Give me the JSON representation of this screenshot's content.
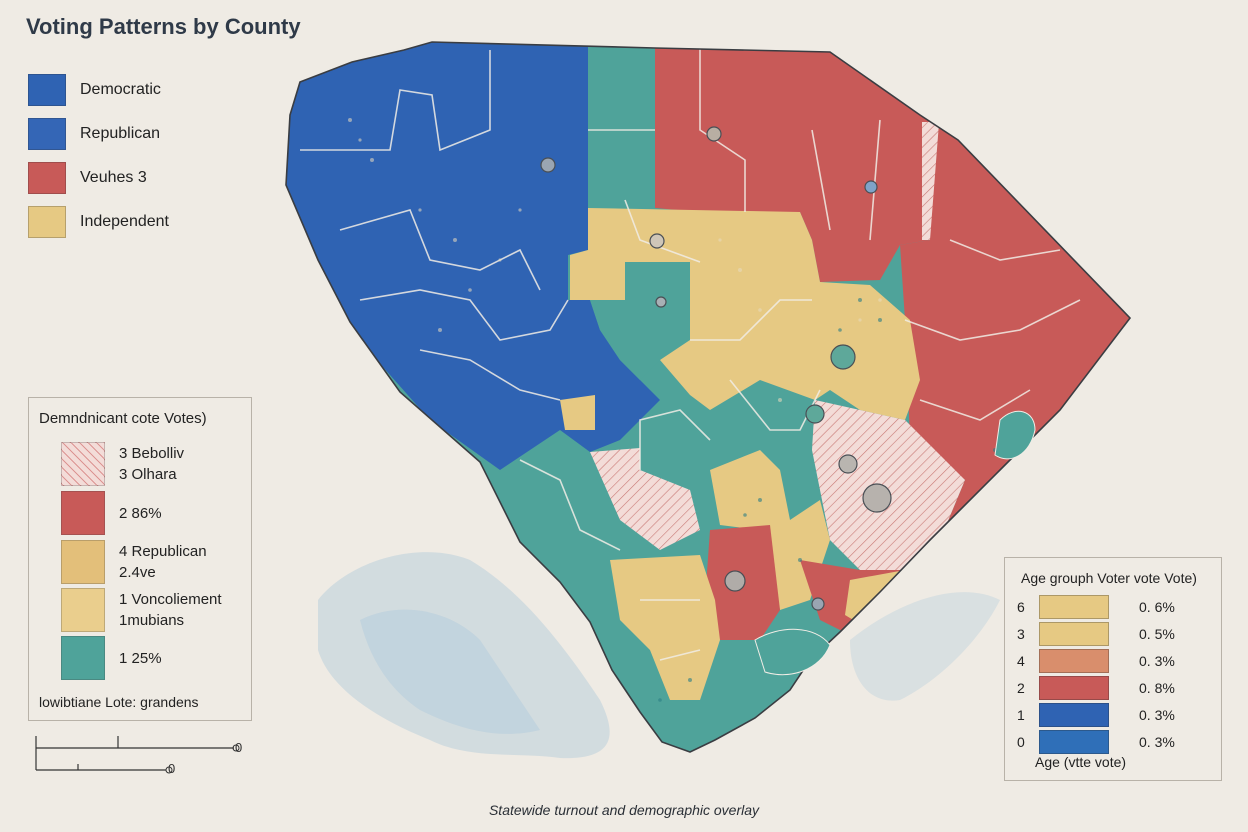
{
  "title": "Voting Patterns by County",
  "legend": {
    "items": [
      {
        "label": "Democratic",
        "color": "#2f63b3"
      },
      {
        "label": "Republican",
        "color": "#3466b6"
      },
      {
        "label": "Veuhes 3",
        "color": "#c85a58"
      },
      {
        "label": "Independent",
        "color": "#e6c983"
      }
    ]
  },
  "demographic_legend": {
    "title": "Demndnicant cote Votes)",
    "items": [
      {
        "line1": "3 Bebolliv",
        "line2": "3 Olhara",
        "color": "#f3dcd8",
        "pattern": "hatched"
      },
      {
        "line1": "2 86%",
        "line2": "",
        "color": "#c85a58"
      },
      {
        "line1": "4 Republican",
        "line2": "2.4ve",
        "color": "#e3bf7a"
      },
      {
        "line1": "1 Voncoliement",
        "line2": "1mubians",
        "color": "#eace8d"
      },
      {
        "line1": "1 25%",
        "line2": "",
        "color": "#4fa39a"
      }
    ],
    "footnote": "lowibtiane Lote: grandens"
  },
  "age_legend": {
    "title": "Age grouph Voter vote Vote)",
    "rows": [
      {
        "label": "6",
        "color": "#e6c983",
        "value": "0. 6%"
      },
      {
        "label": "3",
        "color": "#e6c983",
        "value": "0. 5%"
      },
      {
        "label": "4",
        "color": "#d98e6c",
        "value": "0. 3%"
      },
      {
        "label": "2",
        "color": "#c85a58",
        "value": "0. 8%"
      },
      {
        "label": "1",
        "color": "#2f63b3",
        "value": "0. 3%"
      },
      {
        "label": "0",
        "color": "#2f6fb8",
        "value": "0. 3%"
      }
    ],
    "footnote": "Age (vtte vote)"
  },
  "scale_bar": {
    "label_top": "0",
    "label_bottom": "0"
  },
  "caption": "Statewide turnout and demographic overlay",
  "colors": {
    "blue": "#2f63b3",
    "teal": "#4fa39a",
    "red": "#c85a58",
    "yellow": "#e6c983",
    "hatched": "#f3dcd8",
    "water": "#9bbfd8"
  }
}
